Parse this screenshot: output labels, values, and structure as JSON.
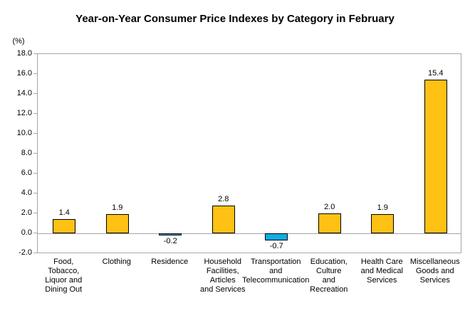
{
  "chart_data": {
    "type": "bar",
    "title": "Year-on-Year Consumer Price Indexes by Category in February",
    "unit_label": "(%)",
    "categories": [
      "Food, Tobacco, Liquor and Dining Out",
      "Clothing",
      "Residence",
      "Household Facilities, Articles and Services",
      "Transportation and Telecommunication",
      "Education, Culture and Recreation",
      "Health Care and Medical Services",
      "Miscellaneous Goods and Services"
    ],
    "category_lines": [
      [
        "Food,",
        "Tobacco,",
        "Liquor and",
        "Dining Out"
      ],
      [
        "Clothing"
      ],
      [
        "Residence"
      ],
      [
        "Household",
        "Facilities,",
        "Articles",
        "and Services"
      ],
      [
        "Transportation",
        "and",
        "Telecommunication"
      ],
      [
        "Education,",
        "Culture",
        "and",
        "Recreation"
      ],
      [
        "Health Care",
        "and Medical",
        "Services"
      ],
      [
        "Miscellaneous",
        "Goods and",
        "Services"
      ]
    ],
    "values": [
      1.4,
      1.9,
      -0.2,
      2.8,
      -0.7,
      2.0,
      1.9,
      15.4
    ],
    "value_labels": [
      "1.4",
      "1.9",
      "-0.2",
      "2.8",
      "-0.7",
      "2.0",
      "1.9",
      "15.4"
    ],
    "ylabel": "",
    "xlabel": "",
    "ylim": [
      -2.0,
      18.0
    ],
    "ytick_step": 2.0,
    "ytick_labels": [
      "18.0",
      "16.0",
      "14.0",
      "12.0",
      "10.0",
      "8.0",
      "6.0",
      "4.0",
      "2.0",
      "0.0",
      "-2.0"
    ],
    "grid": "off",
    "legend": "none",
    "colors": {
      "bar_positive": "#ffc113",
      "bar_negative": "#15aae2",
      "bar_border": "#000000",
      "axis_line": "#a6a6a6",
      "text": "#000000",
      "background": "#ffffff"
    }
  }
}
